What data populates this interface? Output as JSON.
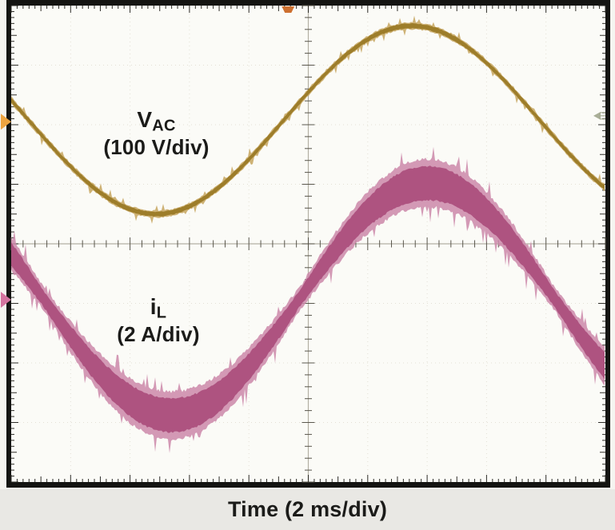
{
  "scope": {
    "frame_color": "#141412",
    "screen_bg": "#fbfbf7",
    "margin_bg": "#f5f4f0",
    "footer_bg": "#e9e8e4",
    "text_color": "#1b1b19",
    "grid": {
      "axis_color": "#b3b0a4",
      "tick_color": "#5a574d",
      "edge_tick_color": "#2e2d28",
      "dot_color": "#e3e0d5"
    },
    "labels": {
      "vac_main": "V",
      "vac_sub": "AC",
      "vac_scale": "(100 V/div)",
      "il_main": "i",
      "il_sub": "L",
      "il_scale": "(2 A/div)",
      "time": "Time (2 ms/div)"
    }
  },
  "chart_data": {
    "type": "line",
    "title": "Oscilloscope capture: AC line voltage and PFC inductor current",
    "xlabel": "Time (2 ms/div)",
    "x_divisions": 10,
    "y_divisions": 8,
    "timebase": "2 ms/div",
    "series": [
      {
        "id": "vac",
        "label": "VAC",
        "scale": "100 V/div",
        "color": "#9d7d2a",
        "edge_color": "#c6a55e",
        "period_div": 8.6,
        "min_at_div_x": 2.44,
        "center_div_y": 1.92,
        "amplitude_div": 1.58,
        "thickness_div": 0.09,
        "noise_div": 0.045,
        "approx_peak": "~160 V peak, period ~17 ms (~60 Hz line)"
      },
      {
        "id": "il",
        "label": "iL",
        "scale": "2 A/div",
        "color": "#ae5380",
        "edge_color": "#cb87a9",
        "period_div": 8.6,
        "min_at_div_x": 2.7,
        "center_div_y": 4.93,
        "amplitude_div": 1.95,
        "thickness_min_div": 0.33,
        "thickness_max_div": 0.75,
        "noise_div": 0.1,
        "approx_peak": "~3.9 A peak envelope with high-frequency switching ripple, in phase with VAC"
      }
    ],
    "markers": {
      "vac_ref": {
        "side": "left",
        "y_div": 1.95,
        "color": "#eea440"
      },
      "il_ref": {
        "side": "left",
        "y_div": 4.94,
        "color": "#d4739f"
      },
      "right_ref": {
        "side": "right",
        "y_div": 1.85,
        "color": "#9aa086"
      },
      "trigger": {
        "side": "top",
        "x_div": 4.66,
        "color": "#cd7030"
      }
    }
  }
}
